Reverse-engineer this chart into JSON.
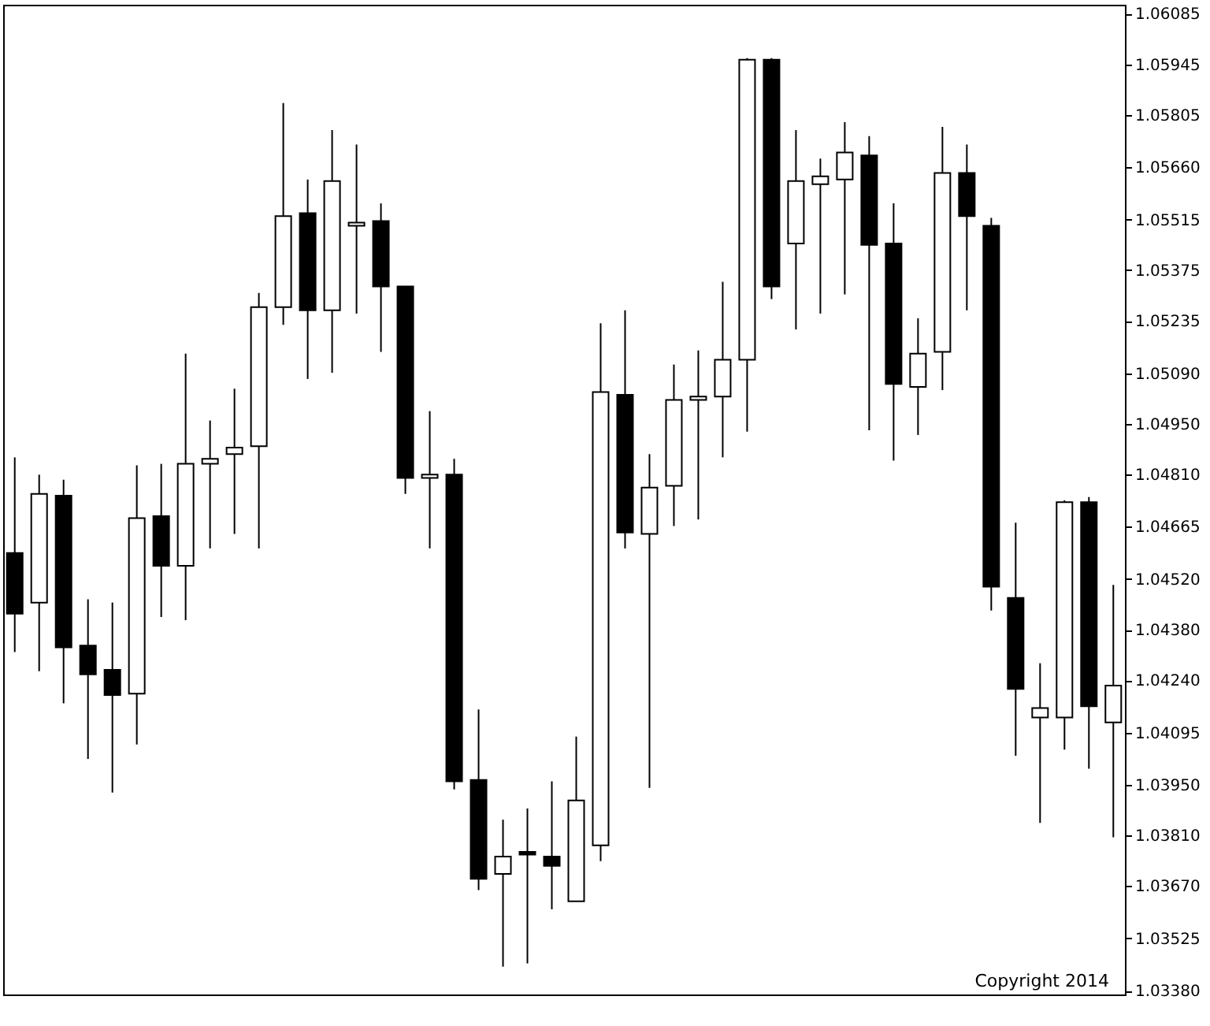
{
  "chart_data": {
    "type": "candlestick",
    "categories": [
      null,
      null,
      null,
      null,
      null,
      null,
      null,
      null,
      null,
      null,
      null,
      null,
      null,
      null,
      null,
      null,
      null,
      null,
      null,
      null,
      null,
      null,
      null,
      null,
      null,
      null,
      null,
      null,
      null,
      null,
      null,
      null,
      null,
      null,
      null,
      null,
      null,
      null,
      null,
      null,
      null,
      null,
      null,
      null,
      null,
      null
    ],
    "ohlc": [
      [
        1.04592,
        1.04857,
        1.04318,
        1.04424
      ],
      [
        1.04455,
        1.04809,
        1.04265,
        1.04756
      ],
      [
        1.04751,
        1.04795,
        1.04176,
        1.04331
      ],
      [
        1.04336,
        1.04464,
        1.04022,
        1.04256
      ],
      [
        1.04269,
        1.04455,
        1.03929,
        1.04199
      ],
      [
        1.04203,
        1.04835,
        1.04062,
        1.04689
      ],
      [
        1.04694,
        1.04839,
        1.04415,
        1.04557
      ],
      [
        1.04557,
        1.05144,
        1.04406,
        1.04839
      ],
      [
        1.04839,
        1.04959,
        1.04605,
        1.04853
      ],
      [
        1.04866,
        1.05047,
        1.04645,
        1.04884
      ],
      [
        1.04888,
        1.05312,
        1.04605,
        1.05273
      ],
      [
        1.05273,
        1.05838,
        1.05224,
        1.05525
      ],
      [
        1.05533,
        1.05626,
        1.05074,
        1.05264
      ],
      [
        1.05264,
        1.05763,
        1.05091,
        1.05622
      ],
      [
        1.05498,
        1.05723,
        1.05255,
        1.05507
      ],
      [
        1.05511,
        1.0556,
        1.05149,
        1.0533
      ],
      [
        1.0533,
        1.0533,
        1.04756,
        1.048
      ],
      [
        1.048,
        1.04985,
        1.04605,
        1.04809
      ],
      [
        1.04809,
        1.04853,
        1.03938,
        1.0396
      ],
      [
        1.03964,
        1.04159,
        1.03659,
        1.0369
      ],
      [
        1.03704,
        1.03854,
        1.03447,
        1.03752
      ],
      [
        1.03765,
        1.03885,
        1.03456,
        1.03757
      ],
      [
        1.03752,
        1.0396,
        1.03606,
        1.03726
      ],
      [
        1.03628,
        1.04084,
        1.03628,
        1.03907
      ],
      [
        1.03783,
        1.05228,
        1.03739,
        1.05038
      ],
      [
        1.0503,
        1.05264,
        1.04605,
        1.04649
      ],
      [
        1.04645,
        1.04866,
        1.03942,
        1.04773
      ],
      [
        1.04778,
        1.05114,
        1.04667,
        1.05016
      ],
      [
        1.05016,
        1.05153,
        1.04685,
        1.05025
      ],
      [
        1.05025,
        1.05343,
        1.04857,
        1.05127
      ],
      [
        1.05127,
        1.05962,
        1.04928,
        1.05958
      ],
      [
        1.05958,
        1.05962,
        1.05295,
        1.0533
      ],
      [
        1.05449,
        1.05763,
        1.05211,
        1.05622
      ],
      [
        1.05613,
        1.05684,
        1.05255,
        1.05635
      ],
      [
        1.05626,
        1.05785,
        1.05308,
        1.05701
      ],
      [
        1.05693,
        1.05746,
        1.04932,
        1.05445
      ],
      [
        1.05449,
        1.0556,
        1.04848,
        1.0506
      ],
      [
        1.05052,
        1.05242,
        1.04919,
        1.05144
      ],
      [
        1.05149,
        1.05772,
        1.05043,
        1.05644
      ],
      [
        1.05644,
        1.05723,
        1.05264,
        1.05525
      ],
      [
        1.05498,
        1.0552,
        1.04433,
        1.04499
      ],
      [
        1.04468,
        1.04676,
        1.04031,
        1.04216
      ],
      [
        1.04137,
        1.04287,
        1.03845,
        1.04163
      ],
      [
        1.04137,
        1.04738,
        1.04048,
        1.04733
      ],
      [
        1.04733,
        1.04747,
        1.03995,
        1.04168
      ],
      [
        1.04123,
        1.04504,
        1.03805,
        1.04225
      ]
    ],
    "colors": [
      "#000000",
      "#ffffff",
      "#000000",
      "#000000",
      "#000000",
      "#ffffff",
      "#000000",
      "#ffffff",
      "#ffffff",
      "#ffffff",
      "#ffffff",
      "#ffffff",
      "#000000",
      "#ffffff",
      "#ffffff",
      "#000000",
      "#000000",
      "#ffffff",
      "#000000",
      "#000000",
      "#ffffff",
      "#000000",
      "#000000",
      "#ffffff",
      "#ffffff",
      "#000000",
      "#ffffff",
      "#ffffff",
      "#ffffff",
      "#ffffff",
      "#ffffff",
      "#000000",
      "#ffffff",
      "#ffffff",
      "#ffffff",
      "#000000",
      "#000000",
      "#ffffff",
      "#ffffff",
      "#000000",
      "#000000",
      "#000000",
      "#ffffff",
      "#ffffff",
      "#000000",
      "#ffffff"
    ],
    "ylim": [
      1.0337,
      1.0611
    ],
    "yticks": [
      {
        "value": 1.0338,
        "label": "1.03380"
      },
      1.03525,
      {
        "value": 1.0367,
        "label": "1.03670"
      },
      {
        "value": 1.0381,
        "label": "1.03810"
      },
      {
        "value": 1.0395,
        "label": "1.03950"
      },
      1.04095,
      {
        "value": 1.0424,
        "label": "1.04240"
      },
      {
        "value": 1.0438,
        "label": "1.04380"
      },
      {
        "value": 1.0452,
        "label": "1.04520"
      },
      1.04665,
      {
        "value": 1.0481,
        "label": "1.04810"
      },
      {
        "value": 1.0495,
        "label": "1.04950"
      },
      {
        "value": 1.0509,
        "label": "1.05090"
      },
      1.05235,
      1.05375,
      1.05515,
      {
        "value": 1.0566,
        "label": "1.05660"
      },
      1.05805,
      1.05945,
      1.06085
    ],
    "grid": false,
    "annotations": [
      "Copyright 2014"
    ]
  }
}
